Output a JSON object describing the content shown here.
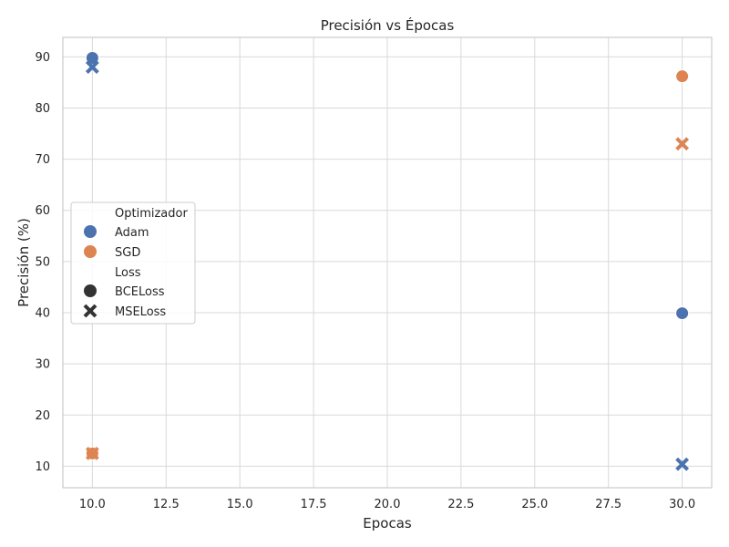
{
  "chart_data": {
    "type": "scatter",
    "title": "Precisión vs Épocas",
    "xlabel": "Epocas",
    "ylabel": "Precisión (%)",
    "xlim": [
      9.0,
      31.0
    ],
    "ylim": [
      5.8,
      93.8
    ],
    "xticks": [
      "10.0",
      "12.5",
      "15.0",
      "17.5",
      "20.0",
      "22.5",
      "25.0",
      "27.5",
      "30.0"
    ],
    "yticks": [
      "10",
      "20",
      "30",
      "40",
      "50",
      "60",
      "70",
      "80",
      "90"
    ],
    "grid": true,
    "legend": {
      "placement": "center-left",
      "hue_title": "Optimizador",
      "hue_entries": [
        {
          "name": "Adam",
          "color": "#4c72b0"
        },
        {
          "name": "SGD",
          "color": "#dd8452"
        }
      ],
      "style_title": "Loss",
      "style_entries": [
        {
          "name": "BCELoss",
          "marker": "circle"
        },
        {
          "name": "MSELoss",
          "marker": "x"
        }
      ]
    },
    "points": [
      {
        "x": 10,
        "y": 89.8,
        "optimizer": "Adam",
        "loss": "BCELoss"
      },
      {
        "x": 10,
        "y": 88.0,
        "optimizer": "Adam",
        "loss": "MSELoss"
      },
      {
        "x": 10,
        "y": 12.5,
        "optimizer": "SGD",
        "loss": "BCELoss"
      },
      {
        "x": 10,
        "y": 12.5,
        "optimizer": "SGD",
        "loss": "MSELoss"
      },
      {
        "x": 30,
        "y": 86.2,
        "optimizer": "SGD",
        "loss": "BCELoss"
      },
      {
        "x": 30,
        "y": 73.0,
        "optimizer": "SGD",
        "loss": "MSELoss"
      },
      {
        "x": 30,
        "y": 39.9,
        "optimizer": "Adam",
        "loss": "BCELoss"
      },
      {
        "x": 30,
        "y": 10.4,
        "optimizer": "Adam",
        "loss": "MSELoss"
      }
    ]
  }
}
